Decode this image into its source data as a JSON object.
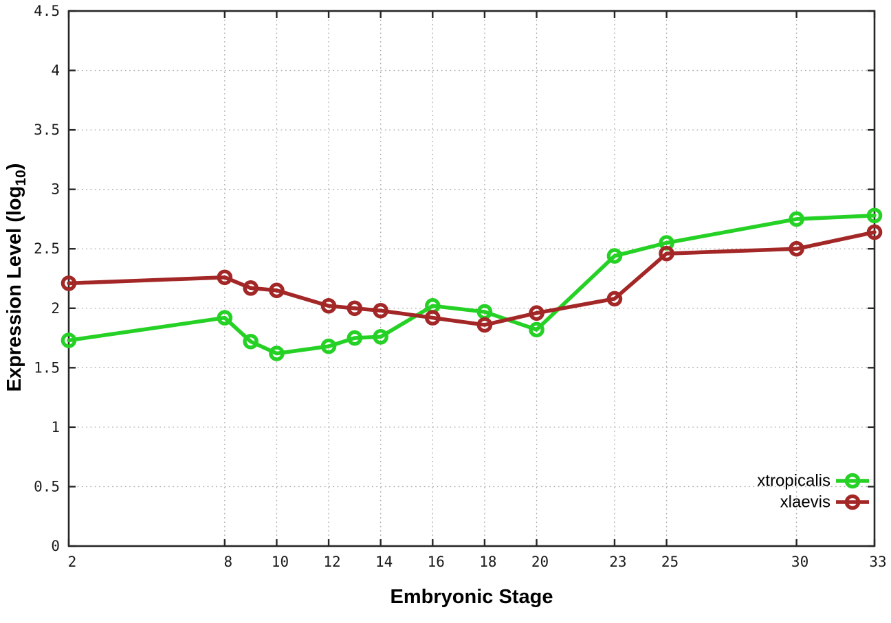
{
  "chart_data": {
    "type": "line",
    "title": "",
    "xlabel": "Embryonic Stage",
    "ylabel": "Expression Level (log10)",
    "ylabel_parts": {
      "pre": "Expression Level (log",
      "sub": "10",
      "post": ")"
    },
    "x": [
      2,
      8,
      9,
      10,
      12,
      13,
      14,
      16,
      18,
      20,
      23,
      25,
      30,
      33
    ],
    "series": [
      {
        "name": "xtropicalis",
        "color": "#26d126",
        "values": [
          1.73,
          1.92,
          1.72,
          1.62,
          1.68,
          1.75,
          1.76,
          2.02,
          1.97,
          1.82,
          2.44,
          2.55,
          2.75,
          2.78
        ]
      },
      {
        "name": "xlaevis",
        "color": "#a32727",
        "values": [
          2.21,
          2.26,
          2.17,
          2.15,
          2.02,
          2.0,
          1.98,
          1.92,
          1.86,
          1.96,
          2.08,
          2.46,
          2.5,
          2.64
        ]
      }
    ],
    "xlim": [
      2,
      33
    ],
    "ylim": [
      0,
      4.5
    ],
    "x_ticks": [
      2,
      8,
      10,
      12,
      14,
      16,
      18,
      20,
      23,
      25,
      30,
      33
    ],
    "x_tick_labels": [
      "2",
      "8",
      "10",
      "12",
      "14",
      "16",
      "18",
      "20",
      "23",
      "25",
      "30",
      "33"
    ],
    "y_ticks": [
      0,
      0.5,
      1,
      1.5,
      2,
      2.5,
      3,
      3.5,
      4,
      4.5
    ],
    "y_tick_labels": [
      "0",
      "0.5",
      "1",
      "1.5",
      "2",
      "2.5",
      "3",
      "3.5",
      "4",
      "4.5"
    ],
    "grid": true,
    "marker": "open-circle",
    "legend": {
      "position": "bottom-right",
      "entries": [
        "xtropicalis",
        "xlaevis"
      ]
    }
  },
  "style": {
    "background": "#ffffff",
    "axis_color": "#262626",
    "grid_color": "#aaaaaa",
    "text_color": "#000000",
    "xtropicalis_color": "#26d126",
    "xlaevis_color": "#a32727"
  }
}
